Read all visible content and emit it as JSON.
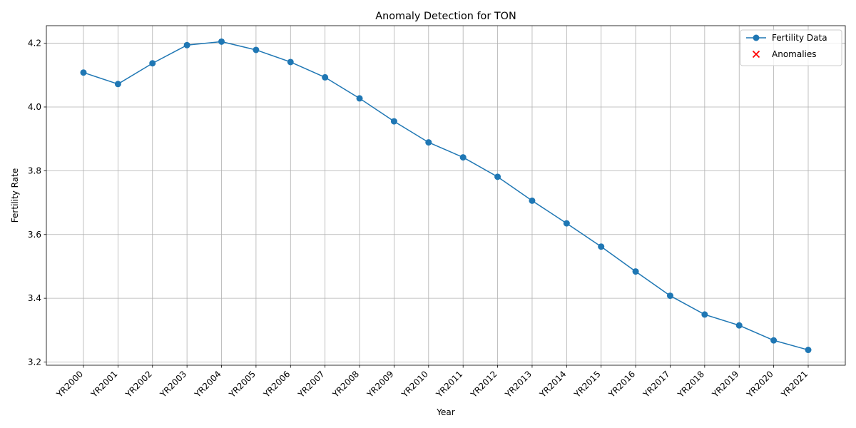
{
  "chart_data": {
    "type": "line",
    "title": "Anomaly Detection for TON",
    "xlabel": "Year",
    "ylabel": "Fertility Rate",
    "categories": [
      "YR2000",
      "YR2001",
      "YR2002",
      "YR2003",
      "YR2004",
      "YR2005",
      "YR2006",
      "YR2007",
      "YR2008",
      "YR2009",
      "YR2010",
      "YR2011",
      "YR2012",
      "YR2013",
      "YR2014",
      "YR2015",
      "YR2016",
      "YR2017",
      "YR2018",
      "YR2019",
      "YR2020",
      "YR2021"
    ],
    "ylim": [
      3.19,
      4.255
    ],
    "yticks": [
      3.2,
      3.4,
      3.6,
      3.8,
      4.0,
      4.2
    ],
    "ytick_labels": [
      "3.2",
      "3.4",
      "3.6",
      "3.8",
      "4.0",
      "4.2"
    ],
    "grid": true,
    "legend_position": "top-right",
    "series": [
      {
        "name": "Fertility Data",
        "color": "#1f77b4",
        "marker": "circle",
        "values": [
          4.108,
          4.072,
          4.137,
          4.194,
          4.205,
          4.179,
          4.141,
          4.093,
          4.027,
          3.955,
          3.889,
          3.842,
          3.781,
          3.706,
          3.635,
          3.562,
          3.484,
          3.408,
          3.349,
          3.315,
          3.268,
          3.238
        ]
      }
    ],
    "anomalies": {
      "name": "Anomalies",
      "color": "#ff0000",
      "marker": "x",
      "categories": [],
      "values": []
    }
  }
}
